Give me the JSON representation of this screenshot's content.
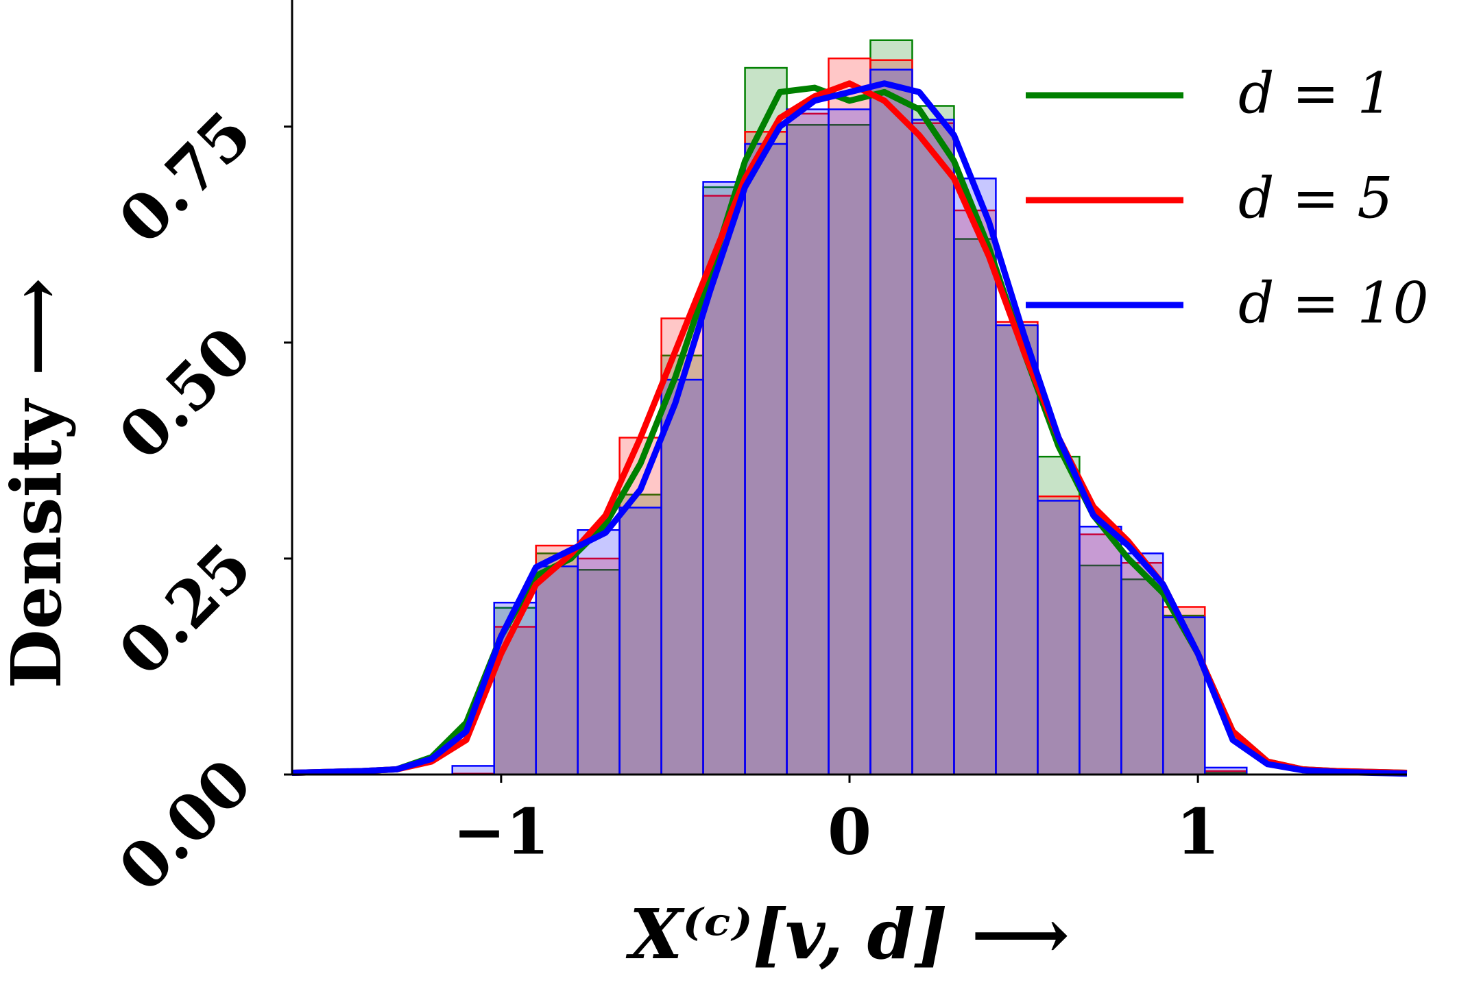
{
  "chart_data": {
    "type": "histogram",
    "xlabel": "X⁽ᶜ⁾[v, d] ⟶",
    "ylabel": "Density ⟶",
    "xlim": [
      -1.6,
      1.6
    ],
    "ylim": [
      0,
      0.895
    ],
    "xticks": [
      {
        "value": -1,
        "label": "−1"
      },
      0,
      1
    ],
    "yticks": [
      {
        "value": 0,
        "label": "0.00"
      },
      {
        "value": 0.25,
        "label": "0.25"
      },
      {
        "value": 0.5,
        "label": "0.50"
      },
      {
        "value": 0.75,
        "label": "0.75"
      }
    ],
    "bins": [
      -1.14,
      -1.02,
      -0.9,
      -0.78,
      -0.66,
      -0.54,
      -0.42,
      -0.3,
      -0.18,
      -0.06,
      0.06,
      0.18,
      0.3,
      0.42,
      0.54,
      0.66,
      0.78,
      0.9,
      1.02,
      1.14
    ],
    "kde_x": [
      -1.6,
      -1.5,
      -1.4,
      -1.3,
      -1.2,
      -1.1,
      -1.0,
      -0.9,
      -0.8,
      -0.7,
      -0.6,
      -0.5,
      -0.4,
      -0.3,
      -0.2,
      -0.1,
      0,
      0.1,
      0.2,
      0.3,
      0.4,
      0.5,
      0.6,
      0.7,
      0.8,
      0.9,
      1.0,
      1.1,
      1.2,
      1.3,
      1.4,
      1.5,
      1.6
    ],
    "series": [
      {
        "name": "d = 1",
        "color": "#008000",
        "values": [
          0,
          0.193,
          0.256,
          0.237,
          0.324,
          0.485,
          0.68,
          0.818,
          0.752,
          0.752,
          0.85,
          0.774,
          0.62,
          0.52,
          0.368,
          0.242,
          0.226,
          0.184,
          0.002
        ],
        "kde": [
          0.002,
          0.003,
          0.004,
          0.006,
          0.02,
          0.06,
          0.16,
          0.23,
          0.25,
          0.29,
          0.36,
          0.46,
          0.58,
          0.71,
          0.79,
          0.795,
          0.78,
          0.79,
          0.77,
          0.71,
          0.61,
          0.49,
          0.38,
          0.3,
          0.25,
          0.21,
          0.14,
          0.05,
          0.015,
          0.006,
          0.004,
          0.003,
          0.002
        ]
      },
      {
        "name": "d = 5",
        "color": "#ff0000",
        "values": [
          0.001,
          0.171,
          0.265,
          0.25,
          0.39,
          0.528,
          0.67,
          0.744,
          0.765,
          0.829,
          0.827,
          0.754,
          0.653,
          0.524,
          0.322,
          0.278,
          0.245,
          0.194,
          0.004
        ],
        "kde": [
          0.002,
          0.003,
          0.004,
          0.006,
          0.015,
          0.04,
          0.14,
          0.22,
          0.255,
          0.3,
          0.39,
          0.49,
          0.59,
          0.69,
          0.76,
          0.785,
          0.8,
          0.78,
          0.74,
          0.69,
          0.6,
          0.49,
          0.39,
          0.31,
          0.27,
          0.22,
          0.14,
          0.05,
          0.015,
          0.006,
          0.004,
          0.003,
          0.002
        ]
      },
      {
        "name": "d = 10",
        "color": "#0000ff",
        "values": [
          0.01,
          0.199,
          0.241,
          0.283,
          0.309,
          0.457,
          0.686,
          0.73,
          0.77,
          0.77,
          0.816,
          0.758,
          0.69,
          0.52,
          0.317,
          0.287,
          0.256,
          0.182,
          0.008
        ],
        "kde": [
          0.002,
          0.003,
          0.004,
          0.006,
          0.018,
          0.05,
          0.16,
          0.24,
          0.26,
          0.28,
          0.33,
          0.43,
          0.56,
          0.68,
          0.75,
          0.78,
          0.79,
          0.8,
          0.79,
          0.74,
          0.64,
          0.51,
          0.39,
          0.3,
          0.265,
          0.22,
          0.14,
          0.04,
          0.012,
          0.005,
          0.003,
          0.002,
          0.001
        ]
      }
    ]
  }
}
